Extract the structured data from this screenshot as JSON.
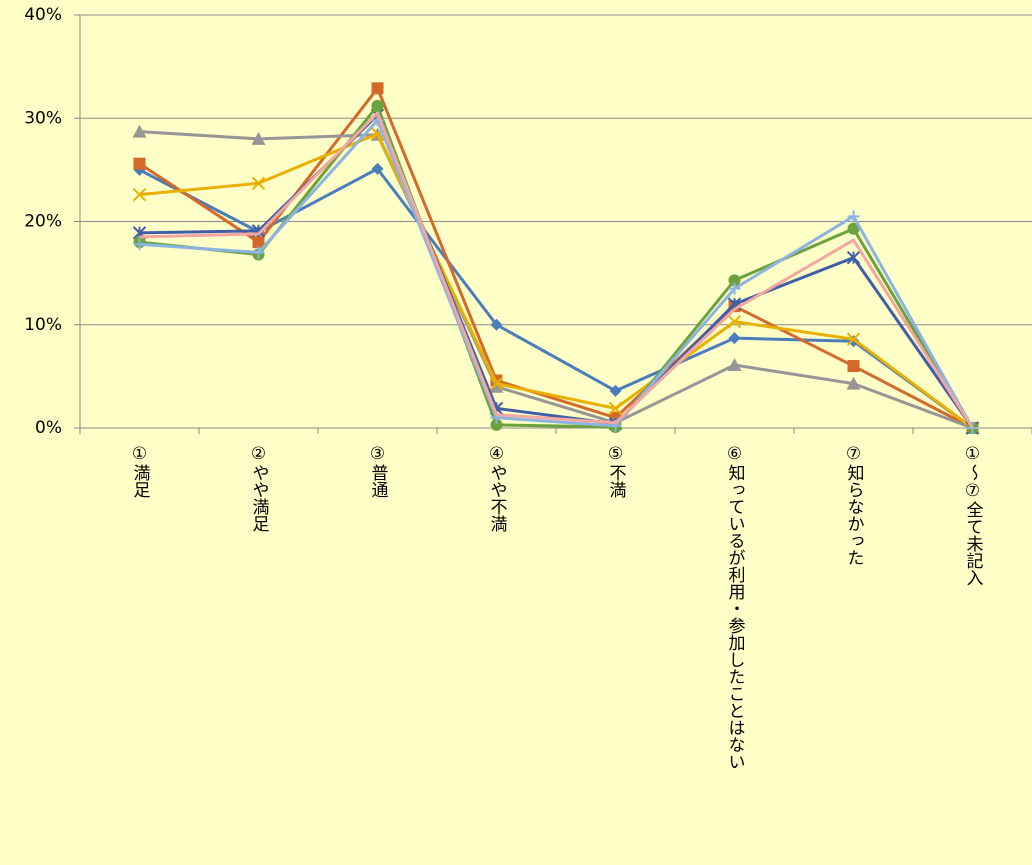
{
  "chart_data": {
    "type": "line",
    "categories": [
      "①満足",
      "②やや満足",
      "③普通",
      "④やや不満",
      "⑤不満",
      "⑥知っているが利用・参加したことはない",
      "⑦知らなかった",
      "①～⑦全て未記入"
    ],
    "series": [
      {
        "color": "#4a7ebb",
        "marker": "diamond",
        "values": [
          25.0,
          19.0,
          25.1,
          10.0,
          3.6,
          8.7,
          8.4,
          0
        ]
      },
      {
        "color": "#d4692a",
        "marker": "square",
        "values": [
          25.6,
          18.0,
          32.9,
          4.6,
          1.0,
          11.8,
          6.0,
          0
        ]
      },
      {
        "color": "#969696",
        "marker": "triangle",
        "values": [
          28.7,
          28.0,
          28.4,
          4.0,
          0.5,
          6.1,
          4.3,
          0
        ]
      },
      {
        "color": "#e8b000",
        "marker": "x",
        "values": [
          22.6,
          23.7,
          28.5,
          4.3,
          1.9,
          10.3,
          8.6,
          0
        ]
      },
      {
        "color": "#3f5fa8",
        "marker": "star",
        "values": [
          18.9,
          19.1,
          30.3,
          1.9,
          0.4,
          12.0,
          16.5,
          0
        ]
      },
      {
        "color": "#6aa33e",
        "marker": "circle",
        "values": [
          18.0,
          16.8,
          31.2,
          0.3,
          0.1,
          14.3,
          19.3,
          0
        ]
      },
      {
        "color": "#8db3e2",
        "marker": "plus",
        "values": [
          17.8,
          17.0,
          29.8,
          1.0,
          0.2,
          13.5,
          20.5,
          0
        ]
      },
      {
        "color": "#f4a6a0",
        "marker": "none",
        "values": [
          18.5,
          18.8,
          30.5,
          1.3,
          0.5,
          11.5,
          18.2,
          0
        ]
      }
    ],
    "ylim": [
      0,
      40
    ],
    "yticks": [
      {
        "value": 0,
        "label": "0%"
      },
      {
        "value": 10,
        "label": "10%"
      },
      {
        "value": 20,
        "label": "20%"
      },
      {
        "value": 30,
        "label": "30%"
      },
      {
        "value": 40,
        "label": "40%"
      }
    ],
    "grid": true
  }
}
